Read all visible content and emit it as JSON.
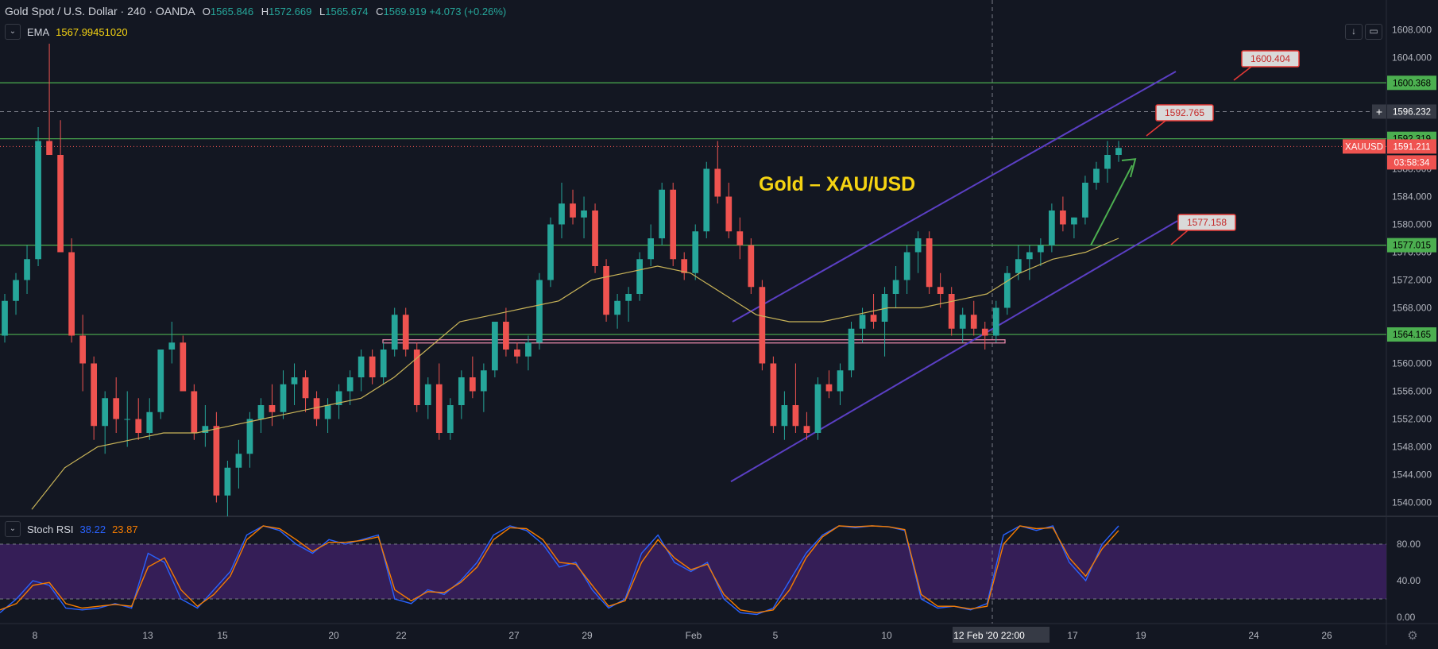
{
  "header": {
    "symbol": "Gold Spot / U.S. Dollar",
    "interval": "240",
    "exchange": "OANDA",
    "ohlc": [
      {
        "k": "O",
        "v": "1565.846"
      },
      {
        "k": "H",
        "v": "1572.669"
      },
      {
        "k": "L",
        "v": "1565.674"
      },
      {
        "k": "C",
        "v": "1569.919"
      }
    ],
    "change": "+4.073 (+0.26%)"
  },
  "ema": {
    "label": "EMA",
    "value": "1567.99451020",
    "toggle": "⌄"
  },
  "stoch": {
    "label": "Stoch RSI",
    "k": "38.22",
    "d": "23.87",
    "toggle": "⌄"
  },
  "toolbar": {
    "collapse_icon": "↓",
    "maximize_icon": "▭"
  },
  "chart_data": {
    "type": "candlestick",
    "title": "Gold – XAU/USD",
    "ylim": [
      1538,
      1610
    ],
    "y_ticks": [
      "1608.000",
      "1604.000",
      "1600.000",
      "1596.000",
      "1592.000",
      "1588.000",
      "1584.000",
      "1580.000",
      "1576.000",
      "1572.000",
      "1568.000",
      "1564.000",
      "1560.000",
      "1556.000",
      "1552.000",
      "1548.000",
      "1544.000",
      "1540.000"
    ],
    "x_ticks": [
      "8",
      "13",
      "15",
      "20",
      "22",
      "27",
      "29",
      "Feb",
      "5",
      "10",
      "12 Feb '20 22:00",
      "17",
      "19",
      "24",
      "26"
    ],
    "price_labels": [
      {
        "text": "1600.368",
        "value": 1600.368,
        "kind": "level"
      },
      {
        "text": "1596.232",
        "value": 1596.232,
        "kind": "crosshair"
      },
      {
        "text": "1592.319",
        "value": 1592.319,
        "kind": "level"
      },
      {
        "text": "XAUUSD",
        "value": 1591.211,
        "kind": "symbol"
      },
      {
        "text": "1591.211",
        "value": 1591.211,
        "kind": "last"
      },
      {
        "text": "03:58:34",
        "value": 1589.5,
        "kind": "countdown"
      },
      {
        "text": "1577.015",
        "value": 1577.015,
        "kind": "level"
      },
      {
        "text": "1564.165",
        "value": 1564.165,
        "kind": "level"
      }
    ],
    "horizontal_levels": [
      1600.368,
      1592.319,
      1577.015,
      1564.165
    ],
    "callouts": [
      "1600.404",
      "1592.765",
      "1577.158"
    ],
    "candles": [
      [
        1564,
        1570,
        1563,
        1569
      ],
      [
        1569,
        1573,
        1567,
        1572
      ],
      [
        1572,
        1577,
        1570,
        1575
      ],
      [
        1575,
        1594,
        1574,
        1592
      ],
      [
        1592,
        1606,
        1590,
        1590
      ],
      [
        1590,
        1595,
        1576,
        1576
      ],
      [
        1576,
        1578,
        1563,
        1564
      ],
      [
        1564,
        1567,
        1556,
        1560
      ],
      [
        1560,
        1561,
        1549,
        1551
      ],
      [
        1551,
        1556,
        1547,
        1555
      ],
      [
        1555,
        1558,
        1550,
        1552
      ],
      [
        1552,
        1556,
        1548,
        1552
      ],
      [
        1552,
        1555,
        1549,
        1550
      ],
      [
        1550,
        1555,
        1549,
        1553
      ],
      [
        1553,
        1562,
        1552,
        1562
      ],
      [
        1562,
        1566,
        1560,
        1563
      ],
      [
        1563,
        1564,
        1556,
        1556
      ],
      [
        1556,
        1557,
        1549,
        1550
      ],
      [
        1550,
        1554,
        1548,
        1551
      ],
      [
        1551,
        1553,
        1540,
        1541
      ],
      [
        1541,
        1546,
        1538,
        1545
      ],
      [
        1545,
        1549,
        1542,
        1547
      ],
      [
        1547,
        1553,
        1545,
        1552
      ],
      [
        1552,
        1555,
        1550,
        1554
      ],
      [
        1554,
        1557,
        1551,
        1553
      ],
      [
        1553,
        1559,
        1552,
        1557
      ],
      [
        1557,
        1560,
        1554,
        1558
      ],
      [
        1558,
        1559,
        1553,
        1555
      ],
      [
        1555,
        1556,
        1551,
        1552
      ],
      [
        1552,
        1555,
        1550,
        1554
      ],
      [
        1554,
        1557,
        1552,
        1556
      ],
      [
        1556,
        1559,
        1554,
        1558
      ],
      [
        1558,
        1562,
        1556,
        1561
      ],
      [
        1561,
        1562,
        1557,
        1558
      ],
      [
        1558,
        1563,
        1557,
        1562
      ],
      [
        1562,
        1568,
        1561,
        1567
      ],
      [
        1567,
        1568,
        1561,
        1562
      ],
      [
        1562,
        1563,
        1553,
        1554
      ],
      [
        1554,
        1558,
        1552,
        1557
      ],
      [
        1557,
        1560,
        1549,
        1550
      ],
      [
        1550,
        1555,
        1549,
        1554
      ],
      [
        1554,
        1559,
        1552,
        1558
      ],
      [
        1558,
        1561,
        1555,
        1556
      ],
      [
        1556,
        1560,
        1553,
        1559
      ],
      [
        1559,
        1566,
        1558,
        1566
      ],
      [
        1566,
        1568,
        1561,
        1562
      ],
      [
        1562,
        1563,
        1560,
        1561
      ],
      [
        1561,
        1564,
        1559,
        1563
      ],
      [
        1563,
        1573,
        1562,
        1572
      ],
      [
        1572,
        1581,
        1571,
        1580
      ],
      [
        1580,
        1586,
        1578,
        1583
      ],
      [
        1583,
        1585,
        1580,
        1581
      ],
      [
        1581,
        1584,
        1578,
        1582
      ],
      [
        1582,
        1583,
        1573,
        1574
      ],
      [
        1574,
        1575,
        1566,
        1567
      ],
      [
        1567,
        1570,
        1565,
        1569
      ],
      [
        1569,
        1571,
        1566,
        1570
      ],
      [
        1570,
        1576,
        1569,
        1575
      ],
      [
        1575,
        1580,
        1574,
        1578
      ],
      [
        1578,
        1586,
        1577,
        1585
      ],
      [
        1585,
        1586,
        1574,
        1575
      ],
      [
        1575,
        1576,
        1572,
        1573
      ],
      [
        1573,
        1580,
        1572,
        1579
      ],
      [
        1579,
        1589,
        1578,
        1588
      ],
      [
        1588,
        1592,
        1583,
        1584
      ],
      [
        1584,
        1586,
        1578,
        1579
      ],
      [
        1579,
        1581,
        1575,
        1577
      ],
      [
        1577,
        1578,
        1570,
        1571
      ],
      [
        1571,
        1572,
        1559,
        1560
      ],
      [
        1560,
        1561,
        1550,
        1551
      ],
      [
        1551,
        1556,
        1549,
        1554
      ],
      [
        1554,
        1560,
        1550,
        1551
      ],
      [
        1551,
        1553,
        1549,
        1550
      ],
      [
        1550,
        1558,
        1549,
        1557
      ],
      [
        1557,
        1559,
        1555,
        1556
      ],
      [
        1556,
        1560,
        1554,
        1559
      ],
      [
        1559,
        1566,
        1558,
        1565
      ],
      [
        1565,
        1568,
        1563,
        1567
      ],
      [
        1567,
        1570,
        1565,
        1566
      ],
      [
        1566,
        1571,
        1561,
        1570
      ],
      [
        1570,
        1574,
        1568,
        1572
      ],
      [
        1572,
        1577,
        1570,
        1576
      ],
      [
        1576,
        1579,
        1573,
        1578
      ],
      [
        1578,
        1579,
        1570,
        1571
      ],
      [
        1571,
        1573,
        1568,
        1570
      ],
      [
        1570,
        1571,
        1564,
        1565
      ],
      [
        1565,
        1568,
        1563,
        1567
      ],
      [
        1567,
        1569,
        1564,
        1565
      ],
      [
        1565,
        1566,
        1562,
        1564
      ],
      [
        1564,
        1569,
        1563,
        1568
      ],
      [
        1568,
        1574,
        1567,
        1573
      ],
      [
        1573,
        1577,
        1572,
        1575
      ],
      [
        1575,
        1577,
        1572,
        1576
      ],
      [
        1576,
        1578,
        1574,
        1577
      ],
      [
        1577,
        1583,
        1576,
        1582
      ],
      [
        1582,
        1584,
        1579,
        1580
      ],
      [
        1580,
        1581,
        1578,
        1581
      ],
      [
        1581,
        1587,
        1580,
        1586
      ],
      [
        1586,
        1589,
        1585,
        1588
      ],
      [
        1588,
        1592,
        1586,
        1590
      ],
      [
        1590,
        1592,
        1589,
        1591
      ]
    ],
    "ema_line": [
      1539,
      1545,
      1548,
      1549,
      1550,
      1550,
      1551,
      1552,
      1553,
      1554,
      1555,
      1558,
      1562,
      1566,
      1567,
      1568,
      1569,
      1572,
      1573,
      1574,
      1573,
      1570,
      1567,
      1566,
      1566,
      1567,
      1568,
      1568,
      1569,
      1570,
      1573,
      1575,
      1576,
      1578
    ],
    "stoch_rsi": {
      "ylim": [
        0,
        100
      ],
      "ticks": [
        "80.00",
        "40.00",
        "0.00"
      ],
      "band": [
        20,
        80
      ],
      "k": [
        5,
        20,
        40,
        35,
        10,
        8,
        10,
        15,
        10,
        70,
        60,
        20,
        10,
        30,
        50,
        90,
        100,
        95,
        80,
        70,
        85,
        80,
        85,
        90,
        20,
        15,
        30,
        25,
        40,
        60,
        90,
        100,
        95,
        80,
        55,
        60,
        30,
        10,
        20,
        70,
        90,
        60,
        50,
        60,
        20,
        5,
        3,
        10,
        40,
        70,
        90,
        100,
        98,
        100,
        99,
        95,
        20,
        10,
        12,
        8,
        15,
        90,
        100,
        95,
        100,
        60,
        40,
        80,
        100
      ],
      "d": [
        8,
        15,
        35,
        38,
        15,
        10,
        12,
        14,
        12,
        55,
        65,
        30,
        12,
        25,
        45,
        85,
        100,
        97,
        85,
        72,
        82,
        82,
        84,
        88,
        30,
        18,
        28,
        27,
        38,
        55,
        85,
        98,
        97,
        85,
        60,
        58,
        35,
        12,
        18,
        60,
        85,
        65,
        52,
        58,
        25,
        8,
        5,
        8,
        30,
        65,
        88,
        100,
        99,
        100,
        99,
        96,
        25,
        12,
        12,
        9,
        12,
        80,
        100,
        97,
        98,
        65,
        45,
        75,
        95
      ]
    }
  },
  "colors": {
    "background": "#131722",
    "up": "#26a69a",
    "down": "#ef5350",
    "level": "#4caf50",
    "level_label": "#4caf50",
    "channel": "#5b3fc4",
    "ema": "#c9b458",
    "title": "#f5d312",
    "arrow": "#4caf50",
    "callout_bg": "#d9d9d9",
    "callout_border": "#e53935",
    "stoch_k": "#2962ff",
    "stoch_d": "#f57c00",
    "stoch_band": "#3a1f5d",
    "last_price": "#ef5350",
    "grid_text": "#b2b5be"
  }
}
